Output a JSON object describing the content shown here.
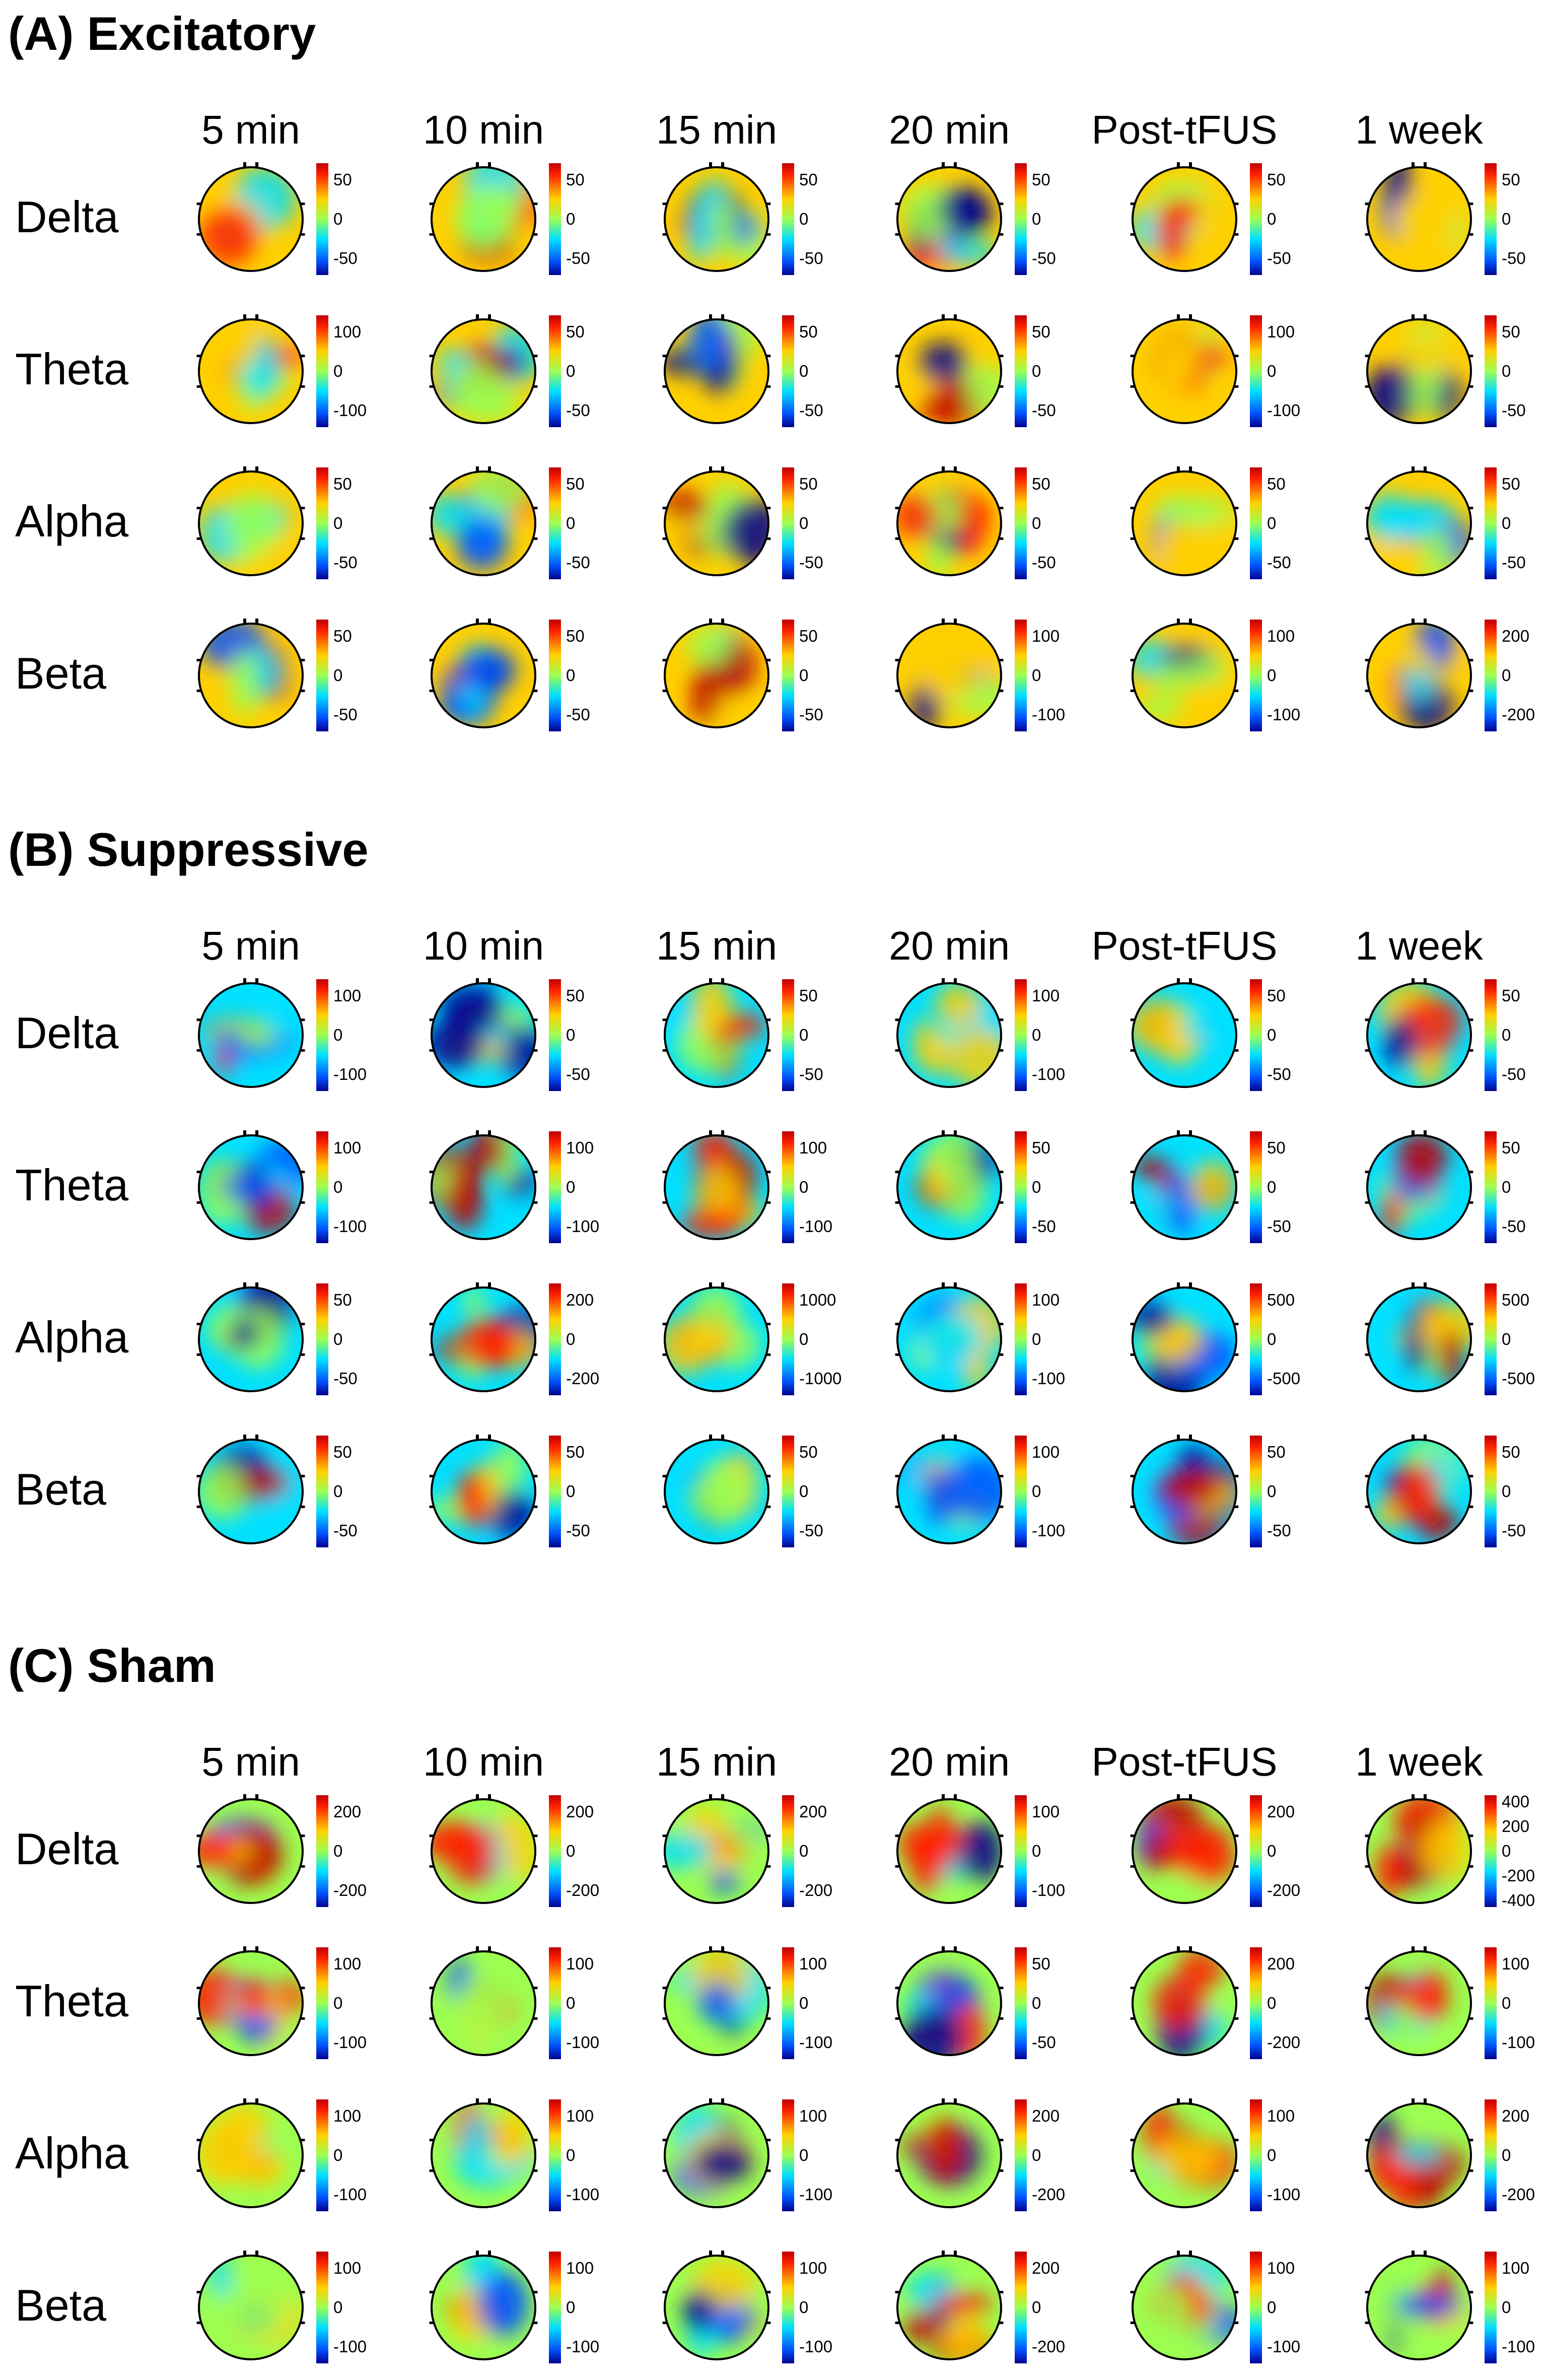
{
  "columns": [
    "5 min",
    "10 min",
    "15 min",
    "20 min",
    "Post-tFUS",
    "1 week"
  ],
  "bands": [
    "Delta",
    "Theta",
    "Alpha",
    "Beta"
  ],
  "colors": {
    "colormap": [
      "#000090",
      "#0050ff",
      "#00e0ff",
      "#9cff50",
      "#ffd000",
      "#ff2000",
      "#c00000"
    ]
  },
  "sections": [
    {
      "title": "(A) Excitatory",
      "colorbar_ticks": [
        [
          [
            "50",
            "0",
            "-50"
          ],
          [
            "50",
            "0",
            "-50"
          ],
          [
            "50",
            "0",
            "-50"
          ],
          [
            "50",
            "0",
            "-50"
          ],
          [
            "50",
            "0",
            "-50"
          ],
          [
            "50",
            "0",
            "-50"
          ]
        ],
        [
          [
            "100",
            "0",
            "-100"
          ],
          [
            "50",
            "0",
            "-50"
          ],
          [
            "50",
            "0",
            "-50"
          ],
          [
            "50",
            "0",
            "-50"
          ],
          [
            "100",
            "0",
            "-100"
          ],
          [
            "50",
            "0",
            "-50"
          ]
        ],
        [
          [
            "50",
            "0",
            "-50"
          ],
          [
            "50",
            "0",
            "-50"
          ],
          [
            "50",
            "0",
            "-50"
          ],
          [
            "50",
            "0",
            "-50"
          ],
          [
            "50",
            "0",
            "-50"
          ],
          [
            "50",
            "0",
            "-50"
          ]
        ],
        [
          [
            "50",
            "0",
            "-50"
          ],
          [
            "50",
            "0",
            "-50"
          ],
          [
            "50",
            "0",
            "-50"
          ],
          [
            "100",
            "0",
            "-100"
          ],
          [
            "100",
            "0",
            "-100"
          ],
          [
            "200",
            "0",
            "-200"
          ]
        ]
      ]
    },
    {
      "title": "(B) Suppressive",
      "colorbar_ticks": [
        [
          [
            "100",
            "0",
            "-100"
          ],
          [
            "50",
            "0",
            "-50"
          ],
          [
            "50",
            "0",
            "-50"
          ],
          [
            "100",
            "0",
            "-100"
          ],
          [
            "50",
            "0",
            "-50"
          ],
          [
            "50",
            "0",
            "-50"
          ]
        ],
        [
          [
            "100",
            "0",
            "-100"
          ],
          [
            "100",
            "0",
            "-100"
          ],
          [
            "100",
            "0",
            "-100"
          ],
          [
            "50",
            "0",
            "-50"
          ],
          [
            "50",
            "0",
            "-50"
          ],
          [
            "50",
            "0",
            "-50"
          ]
        ],
        [
          [
            "50",
            "0",
            "-50"
          ],
          [
            "200",
            "0",
            "-200"
          ],
          [
            "1000",
            "0",
            "-1000"
          ],
          [
            "100",
            "0",
            "-100"
          ],
          [
            "500",
            "0",
            "-500"
          ],
          [
            "500",
            "0",
            "-500"
          ]
        ],
        [
          [
            "50",
            "0",
            "-50"
          ],
          [
            "50",
            "0",
            "-50"
          ],
          [
            "50",
            "0",
            "-50"
          ],
          [
            "100",
            "0",
            "-100"
          ],
          [
            "50",
            "0",
            "-50"
          ],
          [
            "50",
            "0",
            "-50"
          ]
        ]
      ]
    },
    {
      "title": "(C) Sham",
      "colorbar_ticks": [
        [
          [
            "200",
            "0",
            "-200"
          ],
          [
            "200",
            "0",
            "-200"
          ],
          [
            "200",
            "0",
            "-200"
          ],
          [
            "100",
            "0",
            "-100"
          ],
          [
            "200",
            "0",
            "-200"
          ],
          [
            "400",
            "200",
            "0",
            "-200",
            "-400"
          ]
        ],
        [
          [
            "100",
            "0",
            "-100"
          ],
          [
            "100",
            "0",
            "-100"
          ],
          [
            "100",
            "0",
            "-100"
          ],
          [
            "50",
            "0",
            "-50"
          ],
          [
            "200",
            "0",
            "-200"
          ],
          [
            "100",
            "0",
            "-100"
          ]
        ],
        [
          [
            "100",
            "0",
            "-100"
          ],
          [
            "100",
            "0",
            "-100"
          ],
          [
            "100",
            "0",
            "-100"
          ],
          [
            "200",
            "0",
            "-200"
          ],
          [
            "100",
            "0",
            "-100"
          ],
          [
            "200",
            "0",
            "-200"
          ]
        ],
        [
          [
            "100",
            "0",
            "-100"
          ],
          [
            "100",
            "0",
            "-100"
          ],
          [
            "100",
            "0",
            "-100"
          ],
          [
            "200",
            "0",
            "-200"
          ],
          [
            "100",
            "0",
            "-100"
          ],
          [
            "100",
            "0",
            "-100"
          ]
        ]
      ]
    }
  ]
}
